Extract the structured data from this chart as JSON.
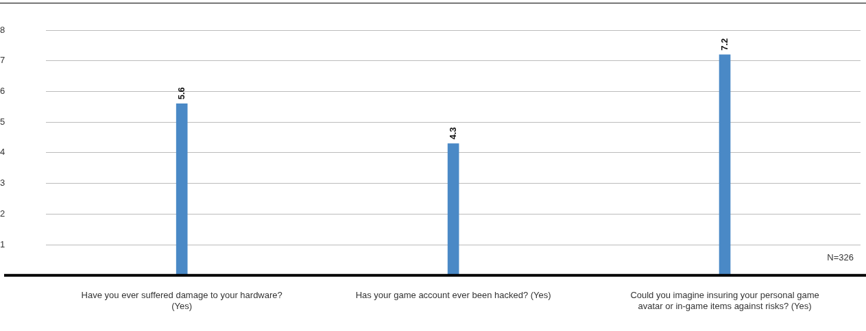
{
  "chart_data": {
    "type": "bar",
    "categories": [
      "Have you ever suffered damage to your hardware? (Yes)",
      "Has your game account ever been hacked? (Yes)",
      "Could you imagine insuring your personal game avatar or in-game items against risks? (Yes)"
    ],
    "values": [
      5.6,
      4.3,
      7.2
    ],
    "color": "#4a89c6",
    "ylim": [
      0,
      8
    ],
    "yticks": [
      1,
      2,
      3,
      4,
      5,
      6,
      7,
      8
    ],
    "grid": "y",
    "data_labels": true,
    "legend": false,
    "annotations": [
      "N=326"
    ]
  }
}
